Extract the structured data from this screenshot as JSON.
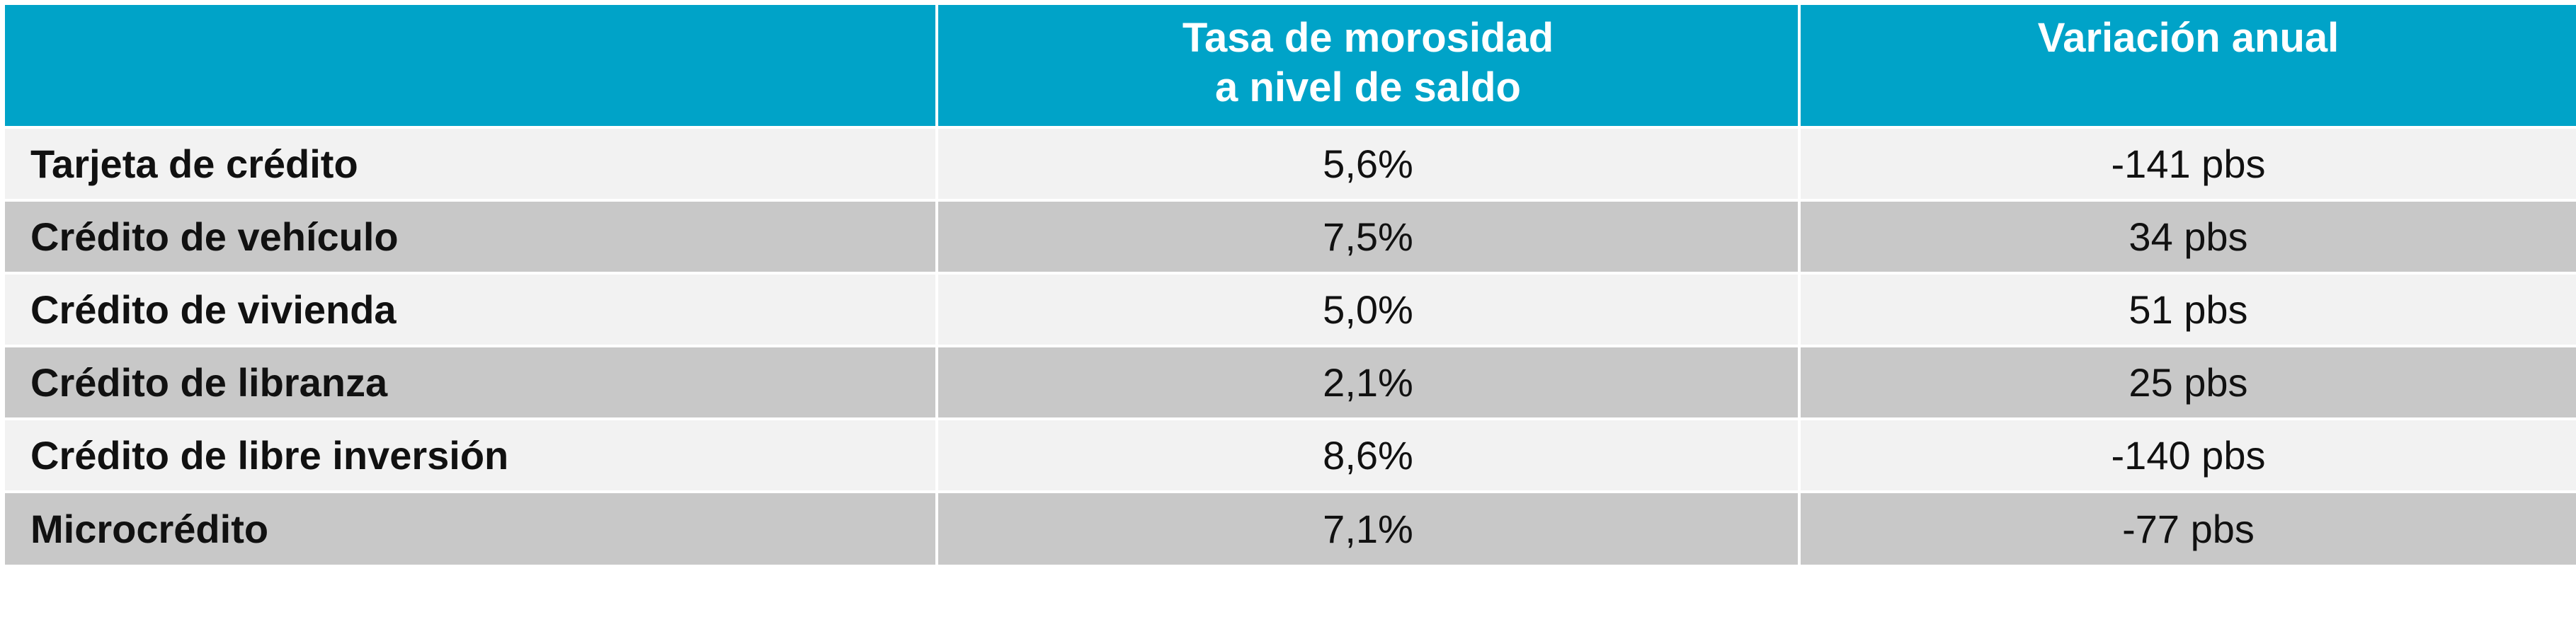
{
  "table": {
    "headers": [
      "",
      "Tasa de morosidad\na nivel de saldo",
      "Variación anual"
    ],
    "rows": [
      {
        "label": "Tarjeta de crédito",
        "rate": "5,6%",
        "change": "-141 pbs"
      },
      {
        "label": "Crédito de vehículo",
        "rate": "7,5%",
        "change": "34 pbs"
      },
      {
        "label": "Crédito de vivienda",
        "rate": "5,0%",
        "change": "51 pbs"
      },
      {
        "label": "Crédito de libranza",
        "rate": "2,1%",
        "change": "25 pbs"
      },
      {
        "label": "Crédito de libre inversión",
        "rate": "8,6%",
        "change": "-140 pbs"
      },
      {
        "label": "Microcrédito",
        "rate": "7,1%",
        "change": "-77 pbs"
      }
    ]
  },
  "colors": {
    "header_bg": "#00a3c8",
    "header_text": "#ffffff",
    "row_light": "#f2f2f2",
    "row_dark": "#c8c8c8"
  }
}
